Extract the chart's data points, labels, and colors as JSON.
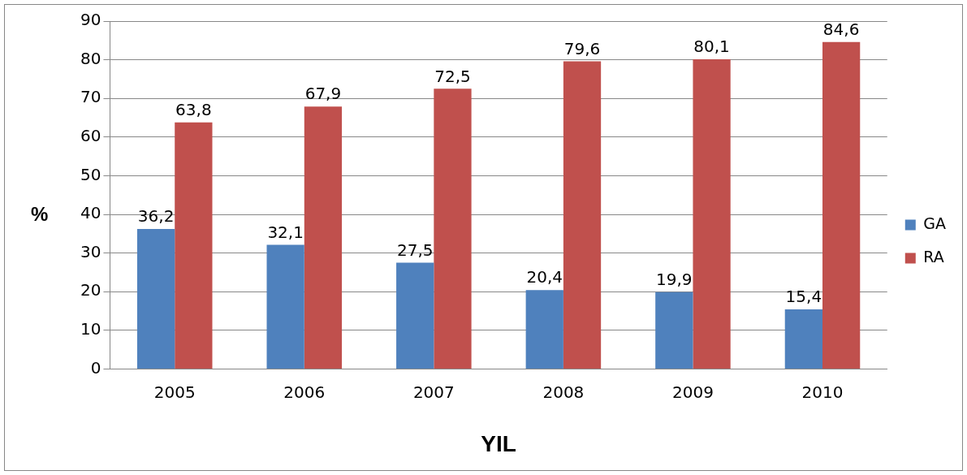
{
  "chart_data": {
    "type": "bar",
    "xlabel": "YIL",
    "ylabel": "%",
    "categories": [
      "2005",
      "2006",
      "2007",
      "2008",
      "2009",
      "2010"
    ],
    "series": [
      {
        "name": "GA",
        "color": "#4f81bd",
        "values": [
          36.2,
          32.1,
          27.5,
          20.4,
          19.9,
          15.4
        ],
        "value_labels": [
          "36,2",
          "32,1",
          "27,5",
          "20,4",
          "19,9",
          "15,4"
        ]
      },
      {
        "name": "RA",
        "color": "#c0504d",
        "values": [
          63.8,
          67.9,
          72.5,
          79.6,
          80.1,
          84.6
        ],
        "value_labels": [
          "63,8",
          "67,9",
          "72,5",
          "79,6",
          "80,1",
          "84,6"
        ]
      }
    ],
    "ylim": [
      0,
      90
    ],
    "yticks": [
      0,
      10,
      20,
      30,
      40,
      50,
      60,
      70,
      80,
      90
    ],
    "grid": "y",
    "legend": "right"
  }
}
